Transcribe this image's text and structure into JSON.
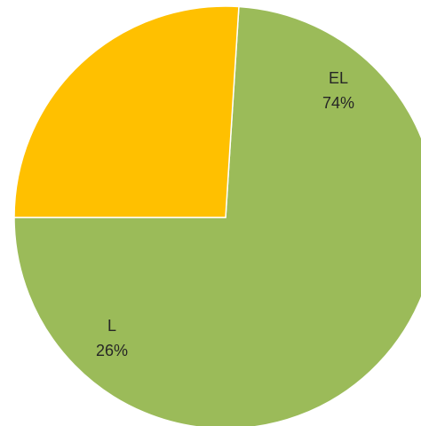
{
  "chart_data": {
    "type": "pie",
    "title": "",
    "slices": [
      {
        "label": "EL",
        "value": 74,
        "percent_label": "74%",
        "color": "#9BBB59"
      },
      {
        "label": "L",
        "value": 26,
        "percent_label": "26%",
        "color": "#FFC000"
      }
    ],
    "start_angle_deg": 180,
    "direction": "counterclockwise",
    "legend": "none",
    "data_labels": "inside"
  }
}
